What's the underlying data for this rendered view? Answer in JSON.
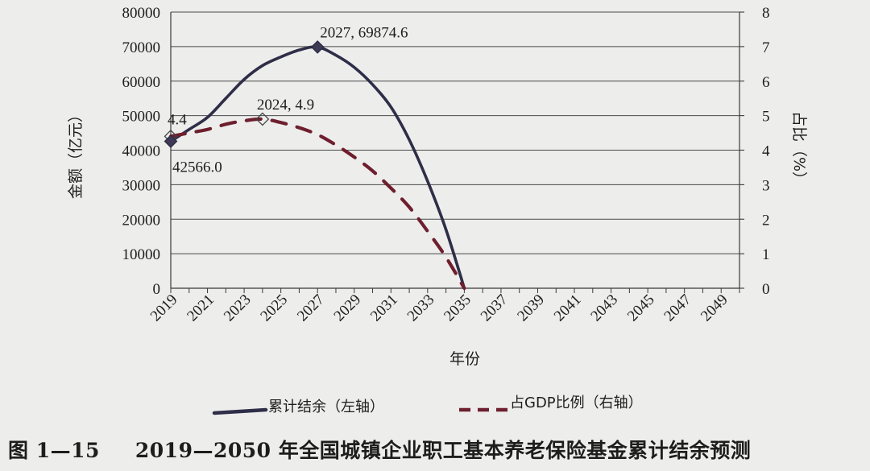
{
  "chart_data": {
    "type": "line",
    "x_ticks": [
      "2019",
      "2021",
      "2023",
      "2025",
      "2027",
      "2029",
      "2031",
      "2033",
      "2035",
      "2037",
      "2039",
      "2041",
      "2043",
      "2045",
      "2047",
      "2049"
    ],
    "xlabel": "年份",
    "ylabel_left": "金额（亿元）",
    "ylabel_right": "占比（%）",
    "ylim_left": [
      0,
      80000
    ],
    "ylim_right": [
      0,
      8
    ],
    "y_ticks_left": [
      "0",
      "10000",
      "20000",
      "30000",
      "40000",
      "50000",
      "60000",
      "70000",
      "80000"
    ],
    "y_ticks_right": [
      "0",
      "1",
      "2",
      "3",
      "4",
      "5",
      "6",
      "7",
      "8"
    ],
    "xlim": [
      2019,
      2050
    ],
    "grid": "horizontal",
    "series": [
      {
        "name": "累计结余（左轴）",
        "axis": "left",
        "color": "#2f2e48",
        "style": "solid",
        "x": [
          2019,
          2020,
          2021,
          2022,
          2023,
          2024,
          2025,
          2026,
          2027,
          2028,
          2029,
          2030,
          2031,
          2032,
          2033,
          2034,
          2035
        ],
        "values": [
          42566.0,
          46000,
          49500,
          55000,
          60500,
          64500,
          67000,
          69000,
          69874.6,
          67500,
          64000,
          59000,
          52500,
          43000,
          31000,
          17000,
          0
        ]
      },
      {
        "name": "占GDP比例（右轴）",
        "axis": "right",
        "color": "#6e1f2e",
        "style": "dashed",
        "x": [
          2019,
          2020,
          2021,
          2022,
          2023,
          2024,
          2025,
          2026,
          2027,
          2028,
          2029,
          2030,
          2031,
          2032,
          2033,
          2034,
          2035
        ],
        "values": [
          4.4,
          4.5,
          4.6,
          4.75,
          4.85,
          4.9,
          4.8,
          4.65,
          4.45,
          4.15,
          3.8,
          3.4,
          2.9,
          2.35,
          1.65,
          0.9,
          0.0
        ]
      }
    ],
    "annotations": [
      {
        "text": "4.4",
        "x": 2019,
        "series": 1,
        "marker": "open-diamond"
      },
      {
        "text": "42566.0",
        "x": 2019,
        "series": 0,
        "marker": "filled-diamond"
      },
      {
        "text": "2024, 4.9",
        "x": 2024,
        "series": 1,
        "marker": "open-diamond"
      },
      {
        "text": "2027, 69874.6",
        "x": 2027,
        "series": 0,
        "marker": "filled-diamond"
      }
    ]
  },
  "caption": {
    "figure_number": "图 1—15",
    "title": "2019—2050 年全国城镇企业职工基本养老保险基金累计结余预测"
  }
}
